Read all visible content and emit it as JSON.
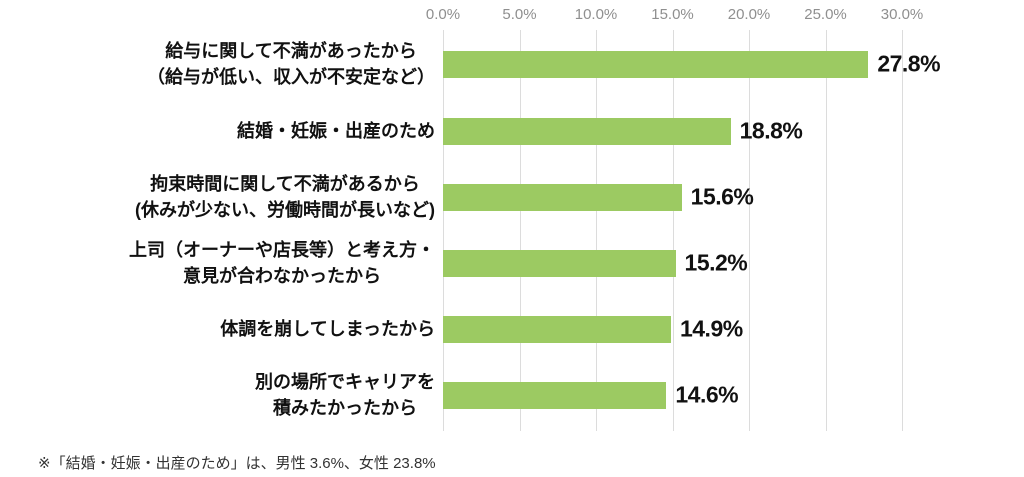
{
  "chart_data": {
    "type": "bar",
    "orientation": "horizontal",
    "categories": [
      "給与に関して不満があったから\n（給与が低い、収入が不安定など）",
      "結婚・妊娠・出産のため",
      "拘束時間に関して不満があるから\n(休みが少ない、労働時間が長いなど)",
      "上司（オーナーや店長等）と考え方・\n意見が合わなかったから",
      "体調を崩してしまったから",
      "別の場所でキャリアを\n積みたかったから"
    ],
    "values": [
      27.8,
      18.8,
      15.6,
      15.2,
      14.9,
      14.6
    ],
    "value_labels": [
      "27.8%",
      "18.8%",
      "15.6%",
      "15.2%",
      "14.9%",
      "14.6%"
    ],
    "xlabel": "",
    "ylabel": "",
    "title": "",
    "axis": {
      "tick_labels": [
        "0.0%",
        "5.0%",
        "10.0%",
        "15.0%",
        "20.0%",
        "25.0%",
        "30.0%"
      ],
      "tick_values": [
        0,
        5,
        10,
        15,
        20,
        25,
        30
      ],
      "xlim": [
        0,
        32.5
      ],
      "tick_position": "top",
      "grid": "vertical"
    },
    "legend": "none",
    "colors": {
      "bar": "#9cca62",
      "gridline": "#dcdcdc",
      "tick_text": "#8f8f8f",
      "label_text": "#111111"
    }
  },
  "footnote": "※「結婚・妊娠・出産のため」は、男性 3.6%、女性 23.8%"
}
